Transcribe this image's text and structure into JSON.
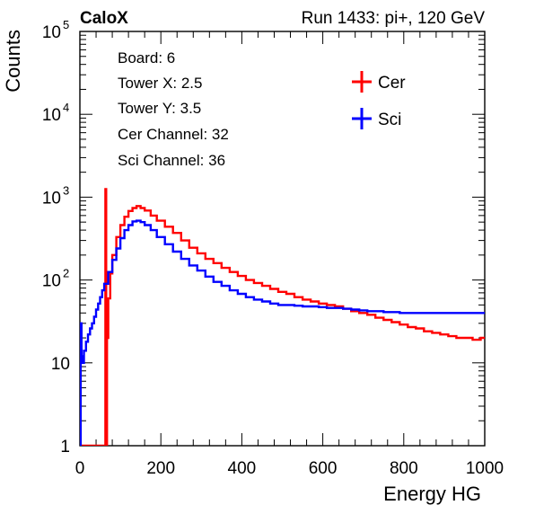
{
  "chart_data": {
    "type": "histogram",
    "title_left": "CaloX",
    "title_right": "Run 1433: pi+, 120 GeV",
    "xlabel": "Energy HG",
    "ylabel": "Counts",
    "xlim": [
      0,
      1000
    ],
    "ylim": [
      1,
      100000
    ],
    "y_scale": "log",
    "x_ticks": [
      0,
      200,
      400,
      600,
      800,
      1000
    ],
    "x_tick_labels": [
      "0",
      "200",
      "400",
      "600",
      "800",
      "1000"
    ],
    "y_ticks": [
      1,
      10,
      100,
      1000,
      10000,
      100000
    ],
    "y_tick_labels": [
      {
        "base": "1",
        "exp": ""
      },
      {
        "base": "10",
        "exp": ""
      },
      {
        "base": "10",
        "exp": "2"
      },
      {
        "base": "10",
        "exp": "3"
      },
      {
        "base": "10",
        "exp": "4"
      },
      {
        "base": "10",
        "exp": "5"
      }
    ],
    "info_box": [
      "Board: 6",
      "Tower X: 2.5",
      "Tower Y: 3.5",
      "Cer Channel: 32",
      "Sci Channel: 36"
    ],
    "legend_position": "top-right",
    "series": [
      {
        "name": "Cer",
        "color": "#ff0000",
        "points": [
          [
            0,
            1
          ],
          [
            62,
            1
          ],
          [
            63,
            1250
          ],
          [
            64,
            1250
          ],
          [
            65,
            1
          ],
          [
            66,
            1
          ],
          [
            67,
            20
          ],
          [
            70,
            60
          ],
          [
            75,
            120
          ],
          [
            80,
            200
          ],
          [
            90,
            330
          ],
          [
            100,
            460
          ],
          [
            110,
            580
          ],
          [
            120,
            680
          ],
          [
            130,
            740
          ],
          [
            140,
            780
          ],
          [
            150,
            740
          ],
          [
            160,
            690
          ],
          [
            175,
            600
          ],
          [
            190,
            520
          ],
          [
            210,
            440
          ],
          [
            230,
            370
          ],
          [
            250,
            300
          ],
          [
            270,
            245
          ],
          [
            290,
            210
          ],
          [
            310,
            180
          ],
          [
            330,
            160
          ],
          [
            350,
            140
          ],
          [
            370,
            125
          ],
          [
            390,
            112
          ],
          [
            410,
            100
          ],
          [
            430,
            92
          ],
          [
            450,
            85
          ],
          [
            470,
            78
          ],
          [
            490,
            72
          ],
          [
            510,
            68
          ],
          [
            530,
            62
          ],
          [
            550,
            58
          ],
          [
            570,
            55
          ],
          [
            590,
            52
          ],
          [
            610,
            50
          ],
          [
            630,
            48
          ],
          [
            650,
            45
          ],
          [
            670,
            42
          ],
          [
            690,
            40
          ],
          [
            710,
            38
          ],
          [
            730,
            35
          ],
          [
            750,
            33
          ],
          [
            770,
            31
          ],
          [
            790,
            29
          ],
          [
            810,
            27
          ],
          [
            830,
            26
          ],
          [
            850,
            24
          ],
          [
            870,
            23
          ],
          [
            890,
            22
          ],
          [
            910,
            21
          ],
          [
            930,
            20
          ],
          [
            950,
            20
          ],
          [
            970,
            19
          ],
          [
            990,
            20
          ],
          [
            1000,
            20
          ]
        ]
      },
      {
        "name": "Sci",
        "color": "#0000ff",
        "points": [
          [
            0,
            1
          ],
          [
            1,
            1
          ],
          [
            2,
            30
          ],
          [
            4,
            12
          ],
          [
            6,
            10
          ],
          [
            10,
            14
          ],
          [
            15,
            18
          ],
          [
            20,
            22
          ],
          [
            25,
            26
          ],
          [
            30,
            30
          ],
          [
            35,
            36
          ],
          [
            40,
            44
          ],
          [
            45,
            52
          ],
          [
            50,
            62
          ],
          [
            55,
            75
          ],
          [
            60,
            90
          ],
          [
            70,
            125
          ],
          [
            80,
            175
          ],
          [
            90,
            240
          ],
          [
            100,
            320
          ],
          [
            110,
            400
          ],
          [
            120,
            460
          ],
          [
            130,
            510
          ],
          [
            140,
            520
          ],
          [
            150,
            500
          ],
          [
            160,
            460
          ],
          [
            175,
            400
          ],
          [
            190,
            330
          ],
          [
            210,
            270
          ],
          [
            230,
            220
          ],
          [
            250,
            180
          ],
          [
            270,
            150
          ],
          [
            290,
            130
          ],
          [
            310,
            110
          ],
          [
            330,
            95
          ],
          [
            350,
            85
          ],
          [
            370,
            75
          ],
          [
            390,
            68
          ],
          [
            410,
            62
          ],
          [
            430,
            58
          ],
          [
            450,
            55
          ],
          [
            470,
            52
          ],
          [
            490,
            50
          ],
          [
            510,
            50
          ],
          [
            530,
            49
          ],
          [
            550,
            48
          ],
          [
            570,
            48
          ],
          [
            590,
            47
          ],
          [
            610,
            46
          ],
          [
            630,
            46
          ],
          [
            650,
            45
          ],
          [
            670,
            44
          ],
          [
            690,
            43
          ],
          [
            710,
            42
          ],
          [
            730,
            42
          ],
          [
            750,
            41
          ],
          [
            770,
            41
          ],
          [
            790,
            40
          ],
          [
            810,
            40
          ],
          [
            830,
            40
          ],
          [
            850,
            40
          ],
          [
            870,
            40
          ],
          [
            890,
            40
          ],
          [
            910,
            40
          ],
          [
            930,
            40
          ],
          [
            950,
            40
          ],
          [
            970,
            40
          ],
          [
            990,
            40
          ],
          [
            1000,
            40
          ]
        ]
      }
    ]
  }
}
